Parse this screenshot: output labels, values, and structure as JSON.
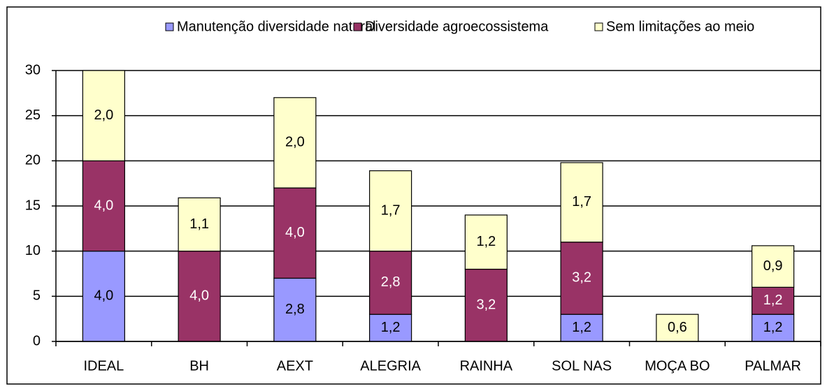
{
  "chart_data": {
    "type": "stacked_bar",
    "categories": [
      "IDEAL",
      "BH",
      "AEXT",
      "ALEGRIA",
      "RAINHA",
      "SOL NAS",
      "MOÇA BO",
      "PALMAR"
    ],
    "series": [
      {
        "name": "Manutenção diversidade natural",
        "color": "#9999ff",
        "values": [
          10,
          0,
          7,
          3,
          0,
          3,
          0,
          3
        ],
        "value_labels": [
          "4,0",
          null,
          "2,8",
          "1,2",
          null,
          "1,2",
          null,
          "1,2"
        ]
      },
      {
        "name": "Diversidade agroecossistema",
        "color": "#993366",
        "values": [
          10,
          10,
          10,
          7,
          8,
          8,
          0,
          3
        ],
        "value_labels": [
          "4,0",
          "4,0",
          "4,0",
          "2,8",
          "3,2",
          "3,2",
          null,
          "1,2"
        ]
      },
      {
        "name": "Sem limitações ao meio",
        "color": "#ffffcc",
        "values": [
          10,
          5.9,
          10,
          8.9,
          6,
          8.8,
          3,
          4.6
        ],
        "value_labels": [
          "2,0",
          "1,1",
          "2,0",
          "1,7",
          "1,2",
          "1,7",
          "0,6",
          "0,9"
        ]
      }
    ],
    "ylim": [
      0,
      30
    ],
    "yticks": [
      0,
      5,
      10,
      15,
      20,
      25,
      30
    ],
    "grid": true,
    "legend": "top"
  }
}
